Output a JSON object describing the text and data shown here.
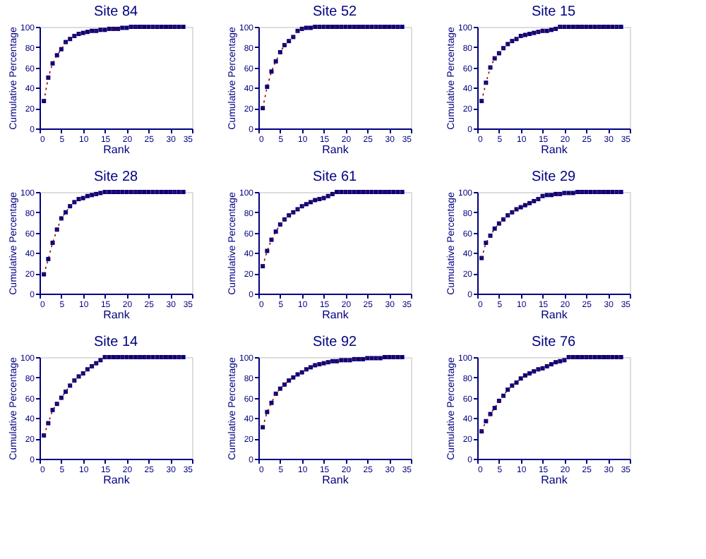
{
  "chart_data": [
    {
      "type": "line",
      "title": "Site 84",
      "xlabel": "Rank",
      "ylabel": "Cumulative Percentage",
      "x": [
        1,
        2,
        3,
        4,
        5,
        6,
        7,
        8,
        9,
        10,
        11,
        12,
        13,
        14,
        15,
        16,
        17,
        18,
        19,
        20,
        21,
        22,
        23,
        24,
        25,
        26,
        27,
        28,
        29,
        30,
        31,
        32,
        33
      ],
      "xlim": [
        0,
        35
      ],
      "xticks": [
        0,
        5,
        10,
        15,
        20,
        25,
        30,
        35
      ],
      "ylim": [
        0,
        100
      ],
      "yticks": [
        0,
        20,
        40,
        60,
        80,
        100
      ],
      "series": [
        {
          "type": "line",
          "color": "#990000",
          "line_style": "dotted",
          "marker": "none",
          "values": [
            27,
            50,
            64,
            72,
            78,
            85,
            88,
            91,
            93,
            94,
            95,
            96,
            96,
            97,
            97,
            98,
            98,
            98,
            99,
            99,
            100,
            100,
            100,
            100,
            100,
            100,
            100,
            100,
            100,
            100,
            100,
            100,
            100
          ]
        },
        {
          "type": "scatter",
          "color": "#000080",
          "marker": "square",
          "values": [
            27,
            50,
            64,
            72,
            78,
            85,
            88,
            91,
            93,
            94,
            95,
            96,
            96,
            97,
            97,
            98,
            98,
            98,
            99,
            99,
            100,
            100,
            100,
            100,
            100,
            100,
            100,
            100,
            100,
            100,
            100,
            100,
            100
          ]
        }
      ]
    },
    {
      "type": "line",
      "title": "Site 52",
      "xlabel": "Rank",
      "ylabel": "Cumulative Percentage",
      "x": [
        1,
        2,
        3,
        4,
        5,
        6,
        7,
        8,
        9,
        10,
        11,
        12,
        13,
        14,
        15,
        16,
        17,
        18,
        19,
        20,
        21,
        22,
        23,
        24,
        25,
        26,
        27,
        28,
        29,
        30,
        31,
        32,
        33
      ],
      "xlim": [
        0,
        35
      ],
      "xticks": [
        0,
        5,
        10,
        15,
        20,
        25,
        30,
        35
      ],
      "ylim": [
        0,
        100
      ],
      "yticks": [
        0,
        20,
        40,
        60,
        80,
        100
      ],
      "series": [
        {
          "type": "line",
          "color": "#990000",
          "line_style": "dotted",
          "marker": "none",
          "values": [
            20,
            41,
            56,
            66,
            75,
            82,
            86,
            90,
            96,
            98,
            99,
            99,
            100,
            100,
            100,
            100,
            100,
            100,
            100,
            100,
            100,
            100,
            100,
            100,
            100,
            100,
            100,
            100,
            100,
            100,
            100,
            100,
            100
          ]
        },
        {
          "type": "scatter",
          "color": "#000080",
          "marker": "square",
          "values": [
            20,
            41,
            56,
            66,
            75,
            82,
            86,
            90,
            96,
            98,
            99,
            99,
            100,
            100,
            100,
            100,
            100,
            100,
            100,
            100,
            100,
            100,
            100,
            100,
            100,
            100,
            100,
            100,
            100,
            100,
            100,
            100,
            100
          ]
        }
      ]
    },
    {
      "type": "line",
      "title": "Site 15",
      "xlabel": "Rank",
      "ylabel": "Cumulative Percentage",
      "x": [
        1,
        2,
        3,
        4,
        5,
        6,
        7,
        8,
        9,
        10,
        11,
        12,
        13,
        14,
        15,
        16,
        17,
        18,
        19,
        20,
        21,
        22,
        23,
        24,
        25,
        26,
        27,
        28,
        29,
        30,
        31,
        32,
        33
      ],
      "xlim": [
        0,
        35
      ],
      "xticks": [
        0,
        5,
        10,
        15,
        20,
        25,
        30,
        35
      ],
      "ylim": [
        0,
        100
      ],
      "yticks": [
        0,
        20,
        40,
        60,
        80,
        100
      ],
      "series": [
        {
          "type": "line",
          "color": "#990000",
          "line_style": "dotted",
          "marker": "none",
          "values": [
            27,
            45,
            60,
            69,
            74,
            79,
            83,
            86,
            88,
            91,
            92,
            93,
            94,
            95,
            96,
            96,
            97,
            98,
            100,
            100,
            100,
            100,
            100,
            100,
            100,
            100,
            100,
            100,
            100,
            100,
            100,
            100,
            100
          ]
        },
        {
          "type": "scatter",
          "color": "#000080",
          "marker": "square",
          "values": [
            27,
            45,
            60,
            69,
            74,
            79,
            83,
            86,
            88,
            91,
            92,
            93,
            94,
            95,
            96,
            96,
            97,
            98,
            100,
            100,
            100,
            100,
            100,
            100,
            100,
            100,
            100,
            100,
            100,
            100,
            100,
            100,
            100
          ]
        }
      ]
    },
    {
      "type": "line",
      "title": "Site 28",
      "xlabel": "Rank",
      "ylabel": "Cumulative Percentage",
      "x": [
        1,
        2,
        3,
        4,
        5,
        6,
        7,
        8,
        9,
        10,
        11,
        12,
        13,
        14,
        15,
        16,
        17,
        18,
        19,
        20,
        21,
        22,
        23,
        24,
        25,
        26,
        27,
        28,
        29,
        30,
        31,
        32,
        33
      ],
      "xlim": [
        0,
        35
      ],
      "xticks": [
        0,
        5,
        10,
        15,
        20,
        25,
        30,
        35
      ],
      "ylim": [
        0,
        100
      ],
      "yticks": [
        0,
        20,
        40,
        60,
        80,
        100
      ],
      "series": [
        {
          "type": "line",
          "color": "#990000",
          "line_style": "dotted",
          "marker": "none",
          "values": [
            19,
            34,
            50,
            63,
            74,
            80,
            86,
            90,
            93,
            94,
            96,
            97,
            98,
            99,
            100,
            100,
            100,
            100,
            100,
            100,
            100,
            100,
            100,
            100,
            100,
            100,
            100,
            100,
            100,
            100,
            100,
            100,
            100
          ]
        },
        {
          "type": "scatter",
          "color": "#000080",
          "marker": "square",
          "values": [
            19,
            34,
            50,
            63,
            74,
            80,
            86,
            90,
            93,
            94,
            96,
            97,
            98,
            99,
            100,
            100,
            100,
            100,
            100,
            100,
            100,
            100,
            100,
            100,
            100,
            100,
            100,
            100,
            100,
            100,
            100,
            100,
            100
          ]
        }
      ]
    },
    {
      "type": "line",
      "title": "Site 61",
      "xlabel": "Rank",
      "ylabel": "Cumulative Percentage",
      "x": [
        1,
        2,
        3,
        4,
        5,
        6,
        7,
        8,
        9,
        10,
        11,
        12,
        13,
        14,
        15,
        16,
        17,
        18,
        19,
        20,
        21,
        22,
        23,
        24,
        25,
        26,
        27,
        28,
        29,
        30,
        31,
        32,
        33
      ],
      "xlim": [
        0,
        35
      ],
      "xticks": [
        0,
        5,
        10,
        15,
        20,
        25,
        30,
        35
      ],
      "ylim": [
        0,
        100
      ],
      "yticks": [
        0,
        20,
        40,
        60,
        80,
        100
      ],
      "series": [
        {
          "type": "line",
          "color": "#990000",
          "line_style": "dotted",
          "marker": "none",
          "values": [
            27,
            42,
            53,
            61,
            68,
            73,
            77,
            80,
            83,
            86,
            88,
            90,
            92,
            93,
            94,
            96,
            98,
            100,
            100,
            100,
            100,
            100,
            100,
            100,
            100,
            100,
            100,
            100,
            100,
            100,
            100,
            100,
            100
          ]
        },
        {
          "type": "scatter",
          "color": "#000080",
          "marker": "square",
          "values": [
            27,
            42,
            53,
            61,
            68,
            73,
            77,
            80,
            83,
            86,
            88,
            90,
            92,
            93,
            94,
            96,
            98,
            100,
            100,
            100,
            100,
            100,
            100,
            100,
            100,
            100,
            100,
            100,
            100,
            100,
            100,
            100,
            100
          ]
        }
      ]
    },
    {
      "type": "line",
      "title": "Site 29",
      "xlabel": "Rank",
      "ylabel": "Cumulative Percentage",
      "x": [
        1,
        2,
        3,
        4,
        5,
        6,
        7,
        8,
        9,
        10,
        11,
        12,
        13,
        14,
        15,
        16,
        17,
        18,
        19,
        20,
        21,
        22,
        23,
        24,
        25,
        26,
        27,
        28,
        29,
        30,
        31,
        32,
        33
      ],
      "xlim": [
        0,
        35
      ],
      "xticks": [
        0,
        5,
        10,
        15,
        20,
        25,
        30,
        35
      ],
      "ylim": [
        0,
        100
      ],
      "yticks": [
        0,
        20,
        40,
        60,
        80,
        100
      ],
      "series": [
        {
          "type": "line",
          "color": "#990000",
          "line_style": "dotted",
          "marker": "none",
          "values": [
            35,
            50,
            57,
            64,
            69,
            73,
            77,
            80,
            83,
            85,
            87,
            89,
            91,
            93,
            96,
            97,
            97,
            98,
            98,
            99,
            99,
            99,
            100,
            100,
            100,
            100,
            100,
            100,
            100,
            100,
            100,
            100,
            100
          ]
        },
        {
          "type": "scatter",
          "color": "#000080",
          "marker": "square",
          "values": [
            35,
            50,
            57,
            64,
            69,
            73,
            77,
            80,
            83,
            85,
            87,
            89,
            91,
            93,
            96,
            97,
            97,
            98,
            98,
            99,
            99,
            99,
            100,
            100,
            100,
            100,
            100,
            100,
            100,
            100,
            100,
            100,
            100
          ]
        }
      ]
    },
    {
      "type": "line",
      "title": "Site 14",
      "xlabel": "Rank",
      "ylabel": "Cumulative Percentage",
      "x": [
        1,
        2,
        3,
        4,
        5,
        6,
        7,
        8,
        9,
        10,
        11,
        12,
        13,
        14,
        15,
        16,
        17,
        18,
        19,
        20,
        21,
        22,
        23,
        24,
        25,
        26,
        27,
        28,
        29,
        30,
        31,
        32,
        33
      ],
      "xlim": [
        0,
        35
      ],
      "xticks": [
        0,
        5,
        10,
        15,
        20,
        25,
        30,
        35
      ],
      "ylim": [
        0,
        100
      ],
      "yticks": [
        0,
        20,
        40,
        60,
        80,
        100
      ],
      "series": [
        {
          "type": "line",
          "color": "#990000",
          "line_style": "dotted",
          "marker": "none",
          "values": [
            23,
            35,
            48,
            54,
            60,
            66,
            72,
            77,
            81,
            84,
            88,
            91,
            94,
            97,
            100,
            100,
            100,
            100,
            100,
            100,
            100,
            100,
            100,
            100,
            100,
            100,
            100,
            100,
            100,
            100,
            100,
            100,
            100
          ]
        },
        {
          "type": "scatter",
          "color": "#000080",
          "marker": "square",
          "values": [
            23,
            35,
            48,
            54,
            60,
            66,
            72,
            77,
            81,
            84,
            88,
            91,
            94,
            97,
            100,
            100,
            100,
            100,
            100,
            100,
            100,
            100,
            100,
            100,
            100,
            100,
            100,
            100,
            100,
            100,
            100,
            100,
            100
          ]
        }
      ]
    },
    {
      "type": "line",
      "title": "Site 92",
      "xlabel": "Rank",
      "ylabel": "Cumulative Percentage",
      "x": [
        1,
        2,
        3,
        4,
        5,
        6,
        7,
        8,
        9,
        10,
        11,
        12,
        13,
        14,
        15,
        16,
        17,
        18,
        19,
        20,
        21,
        22,
        23,
        24,
        25,
        26,
        27,
        28,
        29,
        30,
        31,
        32,
        33
      ],
      "xlim": [
        0,
        35
      ],
      "xticks": [
        0,
        5,
        10,
        15,
        20,
        25,
        30,
        35
      ],
      "ylim": [
        0,
        100
      ],
      "yticks": [
        0,
        20,
        40,
        60,
        80,
        100
      ],
      "series": [
        {
          "type": "line",
          "color": "#990000",
          "line_style": "dotted",
          "marker": "none",
          "values": [
            31,
            46,
            55,
            64,
            69,
            73,
            77,
            80,
            83,
            85,
            88,
            90,
            92,
            93,
            94,
            95,
            96,
            96,
            97,
            97,
            97,
            98,
            98,
            98,
            99,
            99,
            99,
            99,
            100,
            100,
            100,
            100,
            100
          ]
        },
        {
          "type": "scatter",
          "color": "#000080",
          "marker": "square",
          "values": [
            31,
            46,
            55,
            64,
            69,
            73,
            77,
            80,
            83,
            85,
            88,
            90,
            92,
            93,
            94,
            95,
            96,
            96,
            97,
            97,
            97,
            98,
            98,
            98,
            99,
            99,
            99,
            99,
            100,
            100,
            100,
            100,
            100
          ]
        }
      ]
    },
    {
      "type": "line",
      "title": "Site 76",
      "xlabel": "Rank",
      "ylabel": "Cumulative Percentage",
      "x": [
        1,
        2,
        3,
        4,
        5,
        6,
        7,
        8,
        9,
        10,
        11,
        12,
        13,
        14,
        15,
        16,
        17,
        18,
        19,
        20,
        21,
        22,
        23,
        24,
        25,
        26,
        27,
        28,
        29,
        30,
        31,
        32,
        33
      ],
      "xlim": [
        0,
        35
      ],
      "xticks": [
        0,
        5,
        10,
        15,
        20,
        25,
        30,
        35
      ],
      "ylim": [
        0,
        100
      ],
      "yticks": [
        0,
        20,
        40,
        60,
        80,
        100
      ],
      "series": [
        {
          "type": "line",
          "color": "#990000",
          "line_style": "dotted",
          "marker": "none",
          "values": [
            27,
            37,
            44,
            50,
            57,
            62,
            68,
            72,
            75,
            79,
            82,
            84,
            86,
            88,
            89,
            91,
            93,
            95,
            96,
            97,
            100,
            100,
            100,
            100,
            100,
            100,
            100,
            100,
            100,
            100,
            100,
            100,
            100
          ]
        },
        {
          "type": "scatter",
          "color": "#000080",
          "marker": "square",
          "values": [
            27,
            37,
            44,
            50,
            57,
            62,
            68,
            72,
            75,
            79,
            82,
            84,
            86,
            88,
            89,
            91,
            93,
            95,
            96,
            97,
            100,
            100,
            100,
            100,
            100,
            100,
            100,
            100,
            100,
            100,
            100,
            100,
            100
          ]
        }
      ]
    }
  ]
}
